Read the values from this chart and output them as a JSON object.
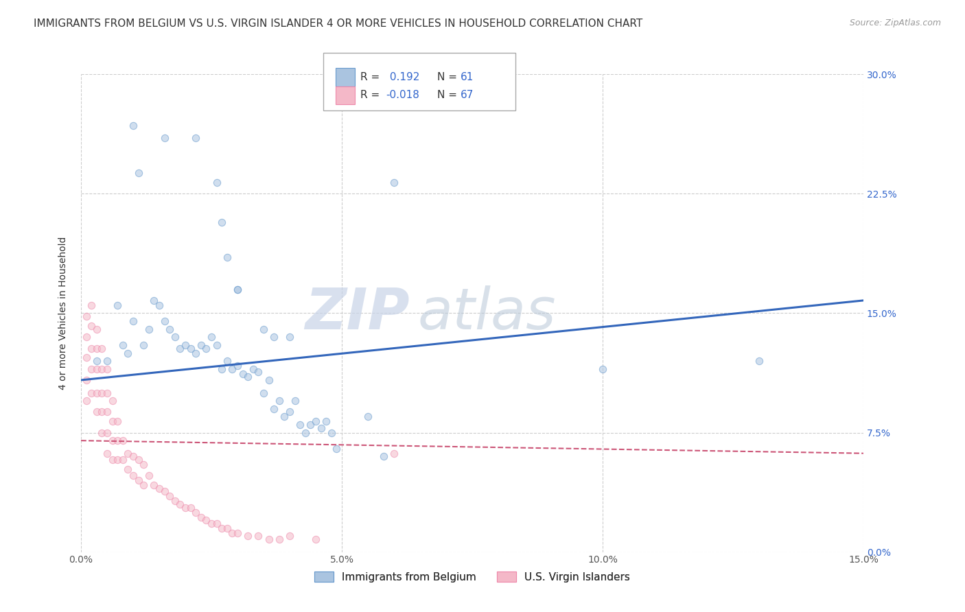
{
  "title": "IMMIGRANTS FROM BELGIUM VS U.S. VIRGIN ISLANDER 4 OR MORE VEHICLES IN HOUSEHOLD CORRELATION CHART",
  "source": "Source: ZipAtlas.com",
  "ylabel": "4 or more Vehicles in Household",
  "xlim": [
    0.0,
    0.15
  ],
  "ylim": [
    0.0,
    0.3
  ],
  "xticks": [
    0.0,
    0.05,
    0.1,
    0.15
  ],
  "xtick_labels": [
    "0.0%",
    "5.0%",
    "10.0%",
    "15.0%"
  ],
  "yticks": [
    0.0,
    0.075,
    0.15,
    0.225,
    0.3
  ],
  "ytick_labels": [
    "0.0%",
    "7.5%",
    "15.0%",
    "22.5%",
    "30.0%"
  ],
  "blue_r": "0.192",
  "blue_n": "61",
  "pink_r": "-0.018",
  "pink_n": "67",
  "watermark_zip": "ZIP",
  "watermark_atlas": "atlas",
  "blue_line_x": [
    0.0,
    0.15
  ],
  "blue_line_y": [
    0.108,
    0.158
  ],
  "pink_line_x": [
    0.0,
    0.15
  ],
  "pink_line_y": [
    0.07,
    0.062
  ],
  "background_color": "#ffffff",
  "grid_color": "#cccccc",
  "title_fontsize": 11,
  "source_fontsize": 9,
  "axis_label_fontsize": 10,
  "tick_fontsize": 10,
  "legend_fontsize": 11,
  "watermark_fontsize_zip": 60,
  "watermark_fontsize_atlas": 60,
  "watermark_color_zip": "#c8d4e8",
  "watermark_color_atlas": "#b8c8d8",
  "blue_color": "#6699cc",
  "blue_fill": "#aac4e0",
  "pink_color": "#ee88aa",
  "pink_fill": "#f4b8c8",
  "blue_line_color": "#3366bb",
  "pink_line_color": "#cc5577",
  "r_value_color": "#3366cc",
  "scatter_size": 55,
  "scatter_alpha": 0.55,
  "blue_x": [
    0.01,
    0.011,
    0.016,
    0.022,
    0.026,
    0.027,
    0.028,
    0.03,
    0.03,
    0.035,
    0.037,
    0.04,
    0.003,
    0.005,
    0.007,
    0.008,
    0.009,
    0.01,
    0.012,
    0.013,
    0.014,
    0.015,
    0.016,
    0.017,
    0.018,
    0.019,
    0.02,
    0.021,
    0.022,
    0.023,
    0.024,
    0.025,
    0.026,
    0.027,
    0.028,
    0.029,
    0.03,
    0.031,
    0.032,
    0.033,
    0.034,
    0.035,
    0.036,
    0.037,
    0.038,
    0.039,
    0.04,
    0.041,
    0.042,
    0.043,
    0.044,
    0.045,
    0.046,
    0.047,
    0.048,
    0.049,
    0.055,
    0.058,
    0.06,
    0.1,
    0.13
  ],
  "blue_y": [
    0.268,
    0.238,
    0.26,
    0.26,
    0.232,
    0.207,
    0.185,
    0.165,
    0.165,
    0.14,
    0.135,
    0.135,
    0.12,
    0.12,
    0.155,
    0.13,
    0.125,
    0.145,
    0.13,
    0.14,
    0.158,
    0.155,
    0.145,
    0.14,
    0.135,
    0.128,
    0.13,
    0.128,
    0.125,
    0.13,
    0.128,
    0.135,
    0.13,
    0.115,
    0.12,
    0.115,
    0.117,
    0.112,
    0.11,
    0.115,
    0.113,
    0.1,
    0.108,
    0.09,
    0.095,
    0.085,
    0.088,
    0.095,
    0.08,
    0.075,
    0.08,
    0.082,
    0.078,
    0.082,
    0.075,
    0.065,
    0.085,
    0.06,
    0.232,
    0.115,
    0.12
  ],
  "pink_x": [
    0.001,
    0.001,
    0.001,
    0.001,
    0.001,
    0.002,
    0.002,
    0.002,
    0.002,
    0.002,
    0.003,
    0.003,
    0.003,
    0.003,
    0.003,
    0.004,
    0.004,
    0.004,
    0.004,
    0.004,
    0.005,
    0.005,
    0.005,
    0.005,
    0.005,
    0.006,
    0.006,
    0.006,
    0.006,
    0.007,
    0.007,
    0.007,
    0.008,
    0.008,
    0.009,
    0.009,
    0.01,
    0.01,
    0.011,
    0.011,
    0.012,
    0.012,
    0.013,
    0.014,
    0.015,
    0.016,
    0.017,
    0.018,
    0.019,
    0.02,
    0.021,
    0.022,
    0.023,
    0.024,
    0.025,
    0.026,
    0.027,
    0.028,
    0.029,
    0.03,
    0.032,
    0.034,
    0.036,
    0.038,
    0.04,
    0.045,
    0.06
  ],
  "pink_y": [
    0.148,
    0.135,
    0.122,
    0.108,
    0.095,
    0.155,
    0.142,
    0.128,
    0.115,
    0.1,
    0.14,
    0.128,
    0.115,
    0.1,
    0.088,
    0.128,
    0.115,
    0.1,
    0.088,
    0.075,
    0.115,
    0.1,
    0.088,
    0.075,
    0.062,
    0.095,
    0.082,
    0.07,
    0.058,
    0.082,
    0.07,
    0.058,
    0.07,
    0.058,
    0.062,
    0.052,
    0.06,
    0.048,
    0.058,
    0.045,
    0.055,
    0.042,
    0.048,
    0.042,
    0.04,
    0.038,
    0.035,
    0.032,
    0.03,
    0.028,
    0.028,
    0.025,
    0.022,
    0.02,
    0.018,
    0.018,
    0.015,
    0.015,
    0.012,
    0.012,
    0.01,
    0.01,
    0.008,
    0.008,
    0.01,
    0.008,
    0.062
  ]
}
